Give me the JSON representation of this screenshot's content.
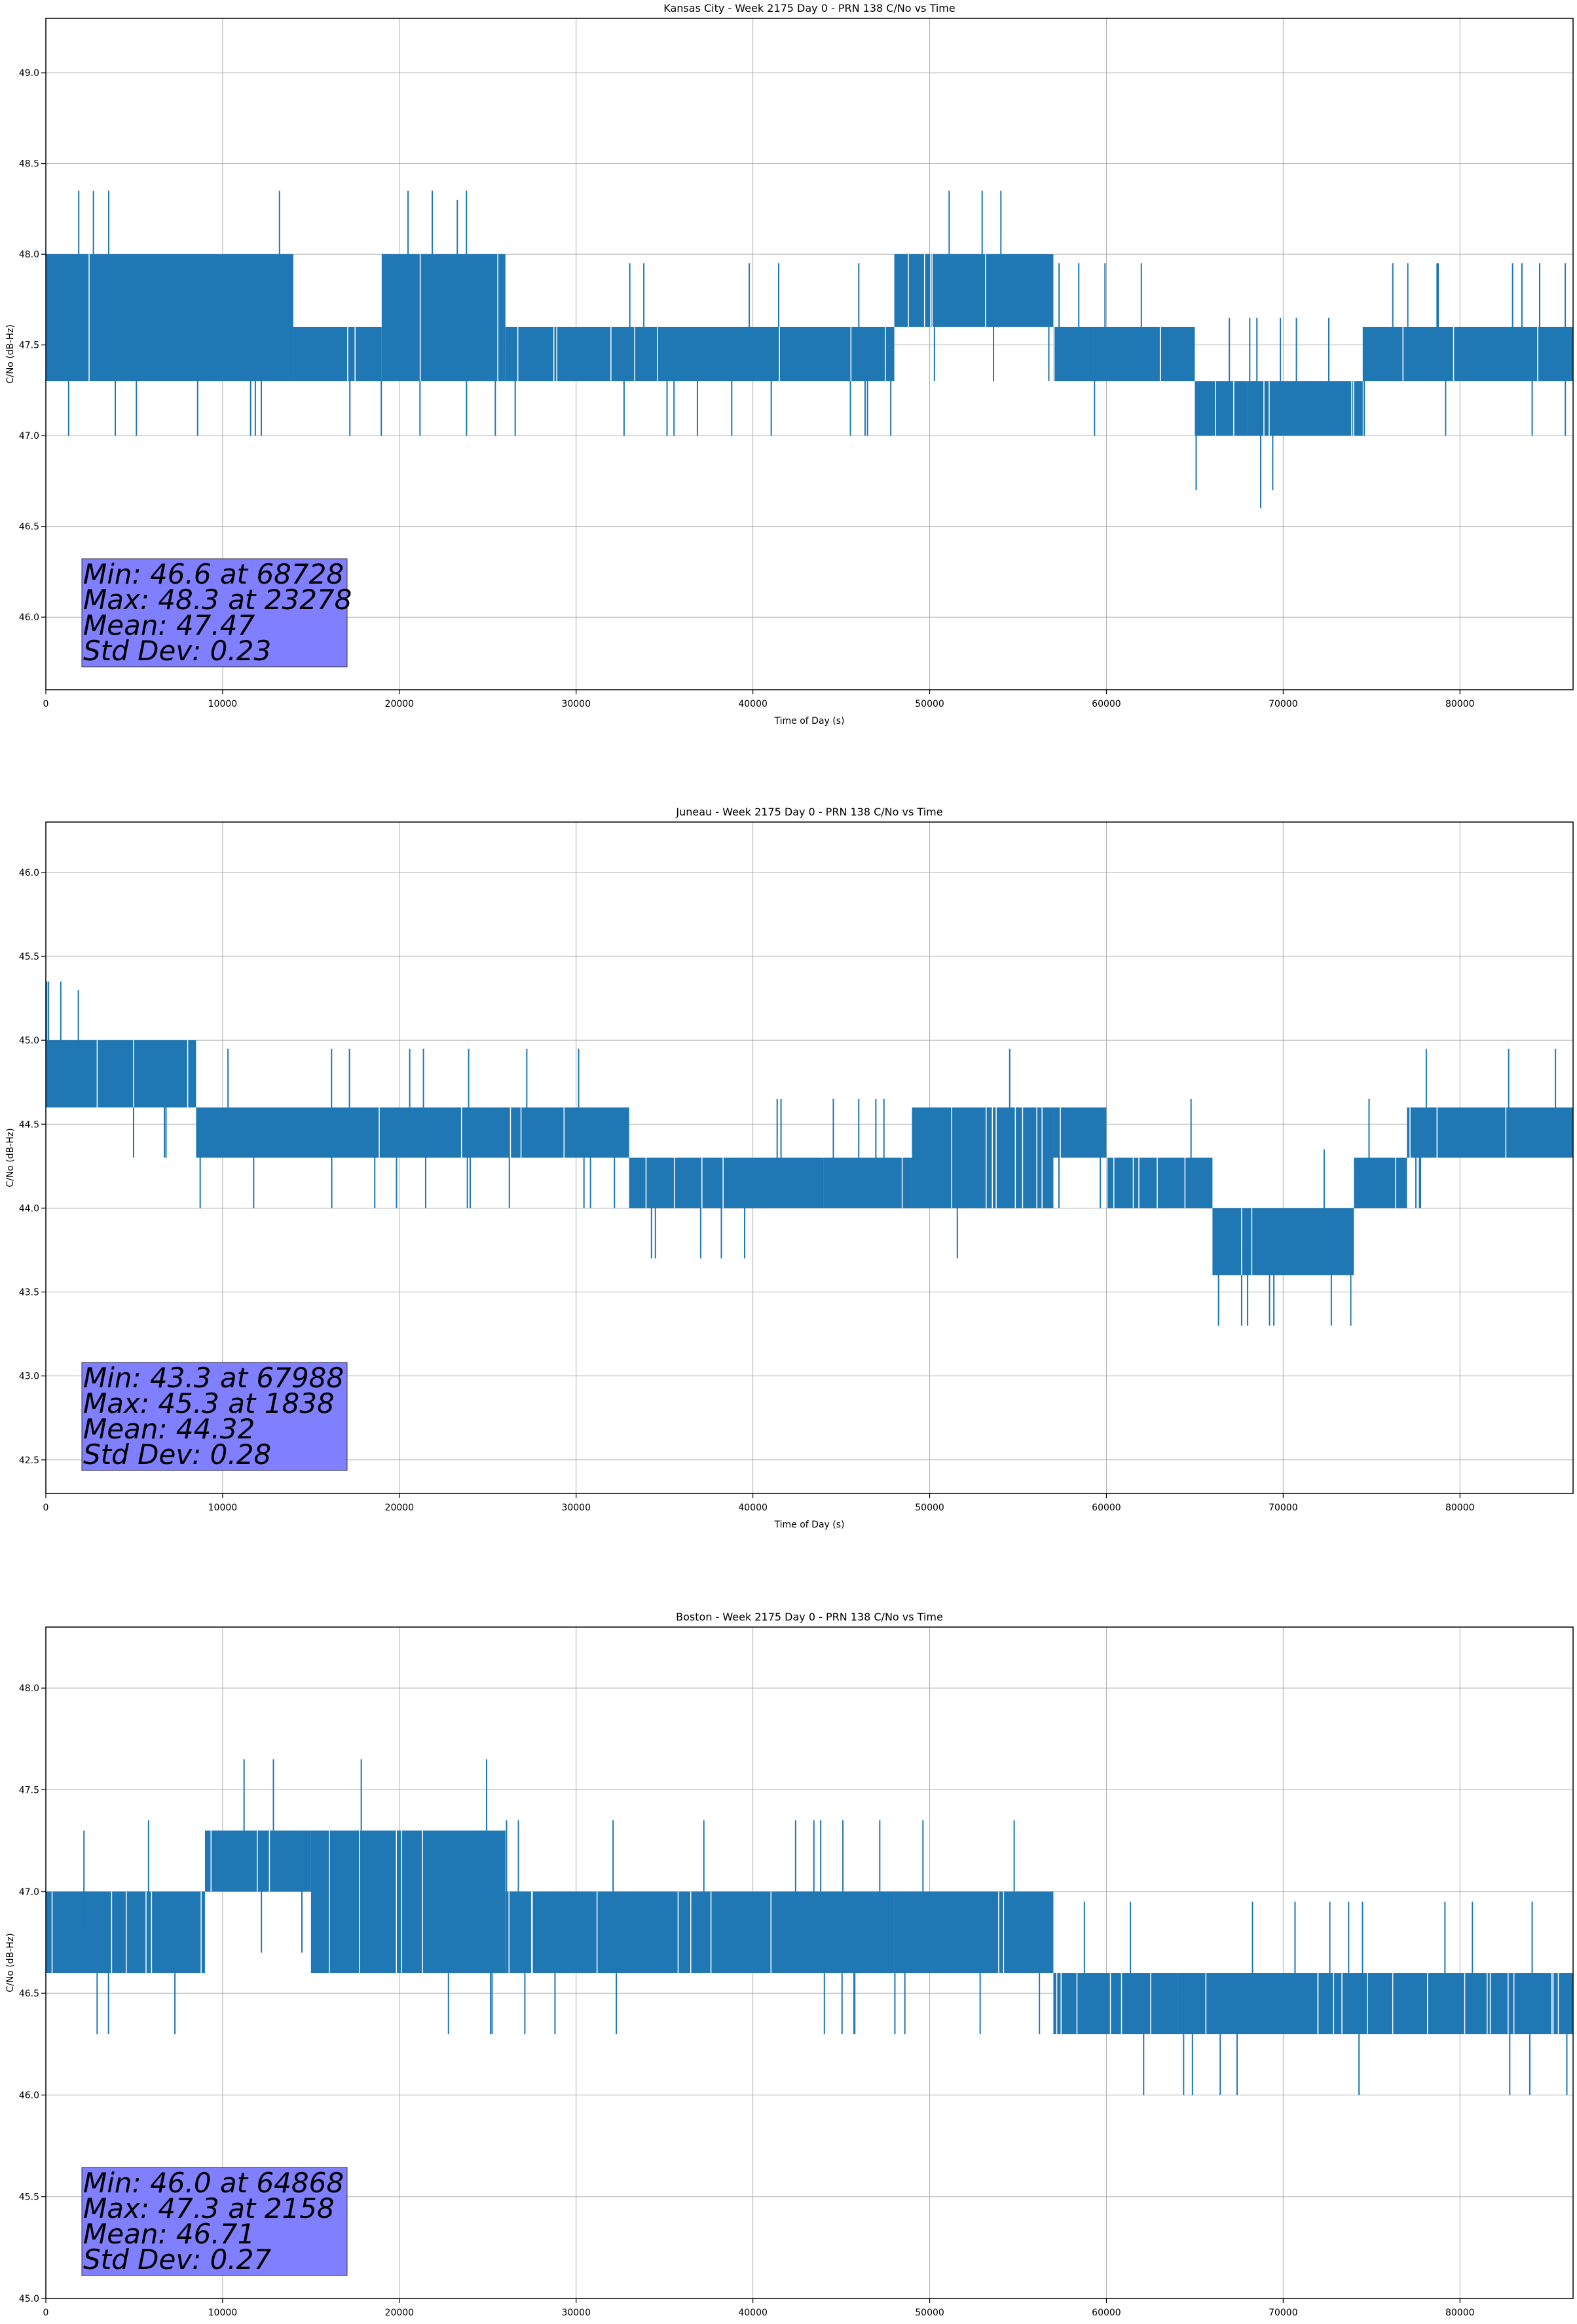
{
  "chart_data": [
    {
      "type": "line",
      "title": "Kansas City - Week 2175 Day 0 - PRN 138 C/No vs Time",
      "xlabel": "Time of Day (s)",
      "ylabel": "C/No (dB-Hz)",
      "xlim": [
        0,
        86400
      ],
      "ylim": [
        45.6,
        49.3
      ],
      "xticks": [
        0,
        10000,
        20000,
        30000,
        40000,
        50000,
        60000,
        70000,
        80000
      ],
      "yticks": [
        46.0,
        46.5,
        47.0,
        47.5,
        48.0,
        48.5,
        49.0
      ],
      "grid": true,
      "color": "#1f77b4",
      "segments": [
        {
          "x0": 0,
          "x1": 14000,
          "lo": 47.3,
          "hi": 48.0
        },
        {
          "x0": 14000,
          "x1": 19000,
          "lo": 47.3,
          "hi": 47.6
        },
        {
          "x0": 19000,
          "x1": 26000,
          "lo": 47.3,
          "hi": 48.0
        },
        {
          "x0": 26000,
          "x1": 48000,
          "lo": 47.3,
          "hi": 47.6
        },
        {
          "x0": 48000,
          "x1": 57000,
          "lo": 47.6,
          "hi": 48.0
        },
        {
          "x0": 57000,
          "x1": 59000,
          "lo": 47.3,
          "hi": 47.6
        },
        {
          "x0": 59000,
          "x1": 65000,
          "lo": 47.3,
          "hi": 47.6
        },
        {
          "x0": 65000,
          "x1": 68000,
          "lo": 47.0,
          "hi": 47.3
        },
        {
          "x0": 68000,
          "x1": 74500,
          "lo": 47.0,
          "hi": 47.3
        },
        {
          "x0": 74500,
          "x1": 86400,
          "lo": 47.3,
          "hi": 47.6
        }
      ],
      "stats": {
        "min_text": "Min: 46.6 at 68728",
        "max_text": "Max: 48.3 at 23278",
        "mean_text": "Mean: 47.47",
        "std_text": "Std Dev: 0.23"
      },
      "min": {
        "x": 68728,
        "y": 46.6
      },
      "max": {
        "x": 23278,
        "y": 48.3
      },
      "mean": 47.47,
      "std": 0.23
    },
    {
      "type": "line",
      "title": "Juneau - Week 2175 Day 0 - PRN 138 C/No vs Time",
      "xlabel": "Time of Day (s)",
      "ylabel": "C/No (dB-Hz)",
      "xlim": [
        0,
        86400
      ],
      "ylim": [
        42.3,
        46.3
      ],
      "xticks": [
        0,
        10000,
        20000,
        30000,
        40000,
        50000,
        60000,
        70000,
        80000
      ],
      "yticks": [
        42.5,
        43.0,
        43.5,
        44.0,
        44.5,
        45.0,
        45.5,
        46.0
      ],
      "grid": true,
      "color": "#1f77b4",
      "segments": [
        {
          "x0": 0,
          "x1": 8500,
          "lo": 44.6,
          "hi": 45.0
        },
        {
          "x0": 8500,
          "x1": 33000,
          "lo": 44.3,
          "hi": 44.6
        },
        {
          "x0": 33000,
          "x1": 44000,
          "lo": 44.0,
          "hi": 44.3
        },
        {
          "x0": 44000,
          "x1": 49000,
          "lo": 44.0,
          "hi": 44.3
        },
        {
          "x0": 49000,
          "x1": 57000,
          "lo": 44.0,
          "hi": 44.6
        },
        {
          "x0": 57000,
          "x1": 60000,
          "lo": 44.3,
          "hi": 44.6
        },
        {
          "x0": 60000,
          "x1": 66000,
          "lo": 44.0,
          "hi": 44.3
        },
        {
          "x0": 66000,
          "x1": 74000,
          "lo": 43.6,
          "hi": 44.0
        },
        {
          "x0": 74000,
          "x1": 77000,
          "lo": 44.0,
          "hi": 44.3
        },
        {
          "x0": 77000,
          "x1": 86400,
          "lo": 44.3,
          "hi": 44.6
        }
      ],
      "stats": {
        "min_text": "Min: 43.3 at 67988",
        "max_text": "Max: 45.3 at 1838",
        "mean_text": "Mean: 44.32",
        "std_text": "Std Dev: 0.28"
      },
      "min": {
        "x": 67988,
        "y": 43.3
      },
      "max": {
        "x": 1838,
        "y": 45.3
      },
      "mean": 44.32,
      "std": 0.28
    },
    {
      "type": "line",
      "title": "Boston - Week 2175 Day 0 - PRN 138 C/No vs Time",
      "xlabel": "Time of Day (s)",
      "ylabel": "C/No (dB-Hz)",
      "xlim": [
        0,
        86400
      ],
      "ylim": [
        45.0,
        48.3
      ],
      "xticks": [
        0,
        10000,
        20000,
        30000,
        40000,
        50000,
        60000,
        70000,
        80000
      ],
      "yticks": [
        45.0,
        45.5,
        46.0,
        46.5,
        47.0,
        47.5,
        48.0
      ],
      "grid": true,
      "color": "#1f77b4",
      "segments": [
        {
          "x0": 0,
          "x1": 9000,
          "lo": 46.6,
          "hi": 47.0
        },
        {
          "x0": 9000,
          "x1": 15000,
          "lo": 47.0,
          "hi": 47.3
        },
        {
          "x0": 15000,
          "x1": 26000,
          "lo": 46.6,
          "hi": 47.3
        },
        {
          "x0": 26000,
          "x1": 48000,
          "lo": 46.6,
          "hi": 47.0
        },
        {
          "x0": 48000,
          "x1": 57000,
          "lo": 46.6,
          "hi": 47.0
        },
        {
          "x0": 57000,
          "x1": 64000,
          "lo": 46.3,
          "hi": 46.6
        },
        {
          "x0": 64000,
          "x1": 86400,
          "lo": 46.3,
          "hi": 46.6
        }
      ],
      "stats": {
        "min_text": "Min: 46.0 at 64868",
        "max_text": "Max: 47.3 at 2158",
        "mean_text": "Mean: 46.71",
        "std_text": "Std Dev: 0.27"
      },
      "min": {
        "x": 64868,
        "y": 46.0
      },
      "max": {
        "x": 2158,
        "y": 47.3
      },
      "mean": 46.71,
      "std": 0.27
    }
  ]
}
